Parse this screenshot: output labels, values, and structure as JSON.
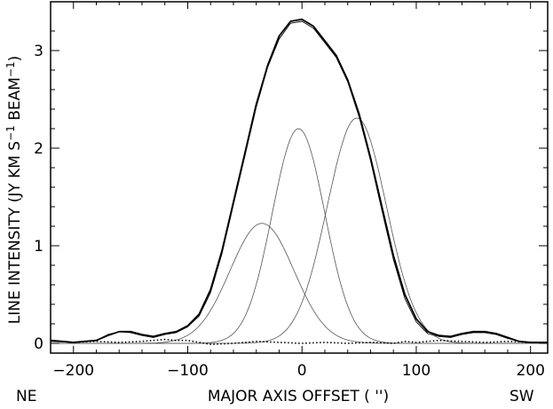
{
  "chart_data": {
    "type": "line",
    "title": "",
    "xlabel": "MAJOR AXIS OFFSET ( '')",
    "ylabel_main": "LINE INTENSITY (JY KM S",
    "ylabel_sup1": "−1",
    "ylabel_mid": " BEAM",
    "ylabel_sup2": "−1",
    "ylabel_end": ")",
    "xlim": [
      -220,
      215
    ],
    "ylim": [
      -0.1,
      3.5
    ],
    "grid": false,
    "direction_left": "NE",
    "direction_right": "SW",
    "xticks": [
      {
        "value": -200,
        "label": "−200"
      },
      {
        "value": -100,
        "label": "−100"
      },
      {
        "value": 0,
        "label": "0"
      },
      {
        "value": 100,
        "label": "100"
      },
      {
        "value": 200,
        "label": "200"
      }
    ],
    "yticks": [
      {
        "value": 0,
        "label": "0"
      },
      {
        "value": 1,
        "label": "1"
      },
      {
        "value": 2,
        "label": "2"
      },
      {
        "value": 3,
        "label": "3"
      }
    ],
    "series": [
      {
        "style": "thick",
        "x": [
          -220,
          -200,
          -180,
          -170,
          -160,
          -150,
          -140,
          -130,
          -120,
          -110,
          -100,
          -90,
          -80,
          -70,
          -60,
          -50,
          -40,
          -30,
          -20,
          -10,
          0,
          10,
          20,
          30,
          40,
          50,
          60,
          70,
          80,
          90,
          100,
          110,
          120,
          130,
          140,
          150,
          160,
          170,
          180,
          190,
          200,
          215
        ],
        "y": [
          0.03,
          0.01,
          0.03,
          0.08,
          0.12,
          0.12,
          0.09,
          0.07,
          0.1,
          0.12,
          0.18,
          0.3,
          0.55,
          0.95,
          1.45,
          1.95,
          2.45,
          2.85,
          3.15,
          3.3,
          3.32,
          3.25,
          3.1,
          2.95,
          2.7,
          2.35,
          1.9,
          1.4,
          0.9,
          0.5,
          0.25,
          0.12,
          0.08,
          0.07,
          0.1,
          0.12,
          0.12,
          0.1,
          0.06,
          0.02,
          0.01,
          0.01
        ]
      },
      {
        "style": "thin",
        "x": [
          -220,
          -200,
          -180,
          -170,
          -160,
          -150,
          -140,
          -130,
          -120,
          -110,
          -100,
          -90,
          -80,
          -70,
          -60,
          -50,
          -40,
          -30,
          -20,
          -10,
          0,
          10,
          20,
          30,
          40,
          50,
          60,
          70,
          80,
          90,
          100,
          110,
          120,
          130,
          140,
          150,
          160,
          170,
          180,
          190,
          200,
          215
        ],
        "y": [
          0.02,
          0.01,
          0.03,
          0.09,
          0.12,
          0.11,
          0.08,
          0.06,
          0.09,
          0.11,
          0.17,
          0.28,
          0.52,
          0.92,
          1.42,
          1.92,
          2.42,
          2.83,
          3.12,
          3.28,
          3.3,
          3.23,
          3.08,
          2.93,
          2.68,
          2.32,
          1.87,
          1.36,
          0.86,
          0.46,
          0.22,
          0.1,
          0.07,
          0.06,
          0.09,
          0.11,
          0.11,
          0.09,
          0.05,
          0.02,
          0.01,
          0.01
        ]
      },
      {
        "style": "dotted",
        "x": [
          -220,
          -200,
          -180,
          -160,
          -140,
          -120,
          -110,
          -100,
          -90,
          -80,
          -60,
          -40,
          -20,
          0,
          20,
          40,
          60,
          80,
          90,
          100,
          110,
          120,
          140,
          160,
          180,
          200,
          215
        ],
        "y": [
          0.03,
          0.01,
          0.02,
          0.01,
          0.02,
          0.04,
          0.03,
          0.03,
          0.01,
          -0.01,
          0.0,
          0.02,
          0.01,
          0.0,
          0.01,
          0.0,
          0.01,
          0.0,
          0.02,
          0.01,
          0.02,
          0.03,
          0.02,
          0.01,
          0.02,
          0.01,
          0.01
        ]
      }
    ],
    "components": [
      {
        "amp": 1.23,
        "center": -35,
        "sigma": 28
      },
      {
        "amp": 2.2,
        "center": -3,
        "sigma": 23
      },
      {
        "amp": 2.31,
        "center": 48,
        "sigma": 26
      }
    ]
  }
}
